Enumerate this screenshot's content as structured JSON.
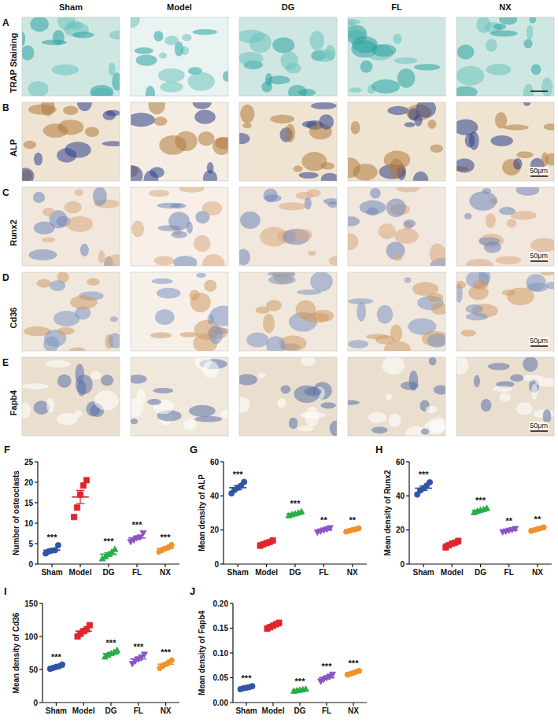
{
  "image_grid": {
    "columns": [
      "Sham",
      "Model",
      "DG",
      "FL",
      "NX"
    ],
    "rows": [
      {
        "panel": "A",
        "label": "TRAP Staining"
      },
      {
        "panel": "B",
        "label": "ALP",
        "scale_bar": "50μm"
      },
      {
        "panel": "C",
        "label": "Runx2",
        "scale_bar": "50μm"
      },
      {
        "panel": "D",
        "label": "Cd36",
        "scale_bar": "50μm"
      },
      {
        "panel": "E",
        "label": "Fapb4",
        "scale_bar": "50μm"
      }
    ]
  },
  "chart_data": [
    {
      "type": "scatter",
      "panel": "F",
      "y_label": "Number of osteoclasts",
      "categories": [
        "Sham",
        "Model",
        "DG",
        "FL",
        "NX"
      ],
      "colors": [
        "#2f55a4",
        "#e0262b",
        "#27ad47",
        "#8a54c6",
        "#f0922b"
      ],
      "values": [
        3.4,
        16.4,
        2.4,
        6.4,
        3.8
      ],
      "errors": [
        0.35,
        1.6,
        0.4,
        0.35,
        0.3
      ],
      "points": [
        [
          2.6,
          3.1,
          3.3,
          3.4,
          4.6
        ],
        [
          11.5,
          13.8,
          17,
          19.2,
          20.5
        ],
        [
          1.3,
          1.8,
          2.4,
          2.9,
          3.6
        ],
        [
          5.5,
          5.9,
          6.4,
          6.6,
          7.6
        ],
        [
          3,
          3.4,
          3.8,
          4.1,
          4.7
        ]
      ],
      "annotations": [
        "***",
        null,
        "***",
        "***",
        "***"
      ],
      "ylim": [
        0,
        25
      ],
      "yticks": [
        0,
        5,
        10,
        15,
        20,
        25
      ]
    },
    {
      "type": "scatter",
      "panel": "G",
      "y_label": "Mean density of ALP",
      "categories": [
        "Sham",
        "Model",
        "DG",
        "FL",
        "NX"
      ],
      "colors": [
        "#2f55a4",
        "#e0262b",
        "#27ad47",
        "#8a54c6",
        "#f0922b"
      ],
      "values": [
        44.8,
        12.3,
        29.5,
        20,
        20
      ],
      "errors": [
        1.2,
        0.5,
        0.4,
        0.5,
        0.4
      ],
      "points": [
        [
          41.5,
          43.5,
          44.8,
          46,
          48.2
        ],
        [
          10.8,
          11.6,
          12.3,
          12.9,
          13.9
        ],
        [
          28.3,
          29,
          29.5,
          30,
          30.7
        ],
        [
          18.7,
          19.4,
          20,
          20.6,
          21.3
        ],
        [
          19,
          19.5,
          20,
          20.4,
          21.1
        ]
      ],
      "annotations": [
        "***",
        null,
        "***",
        "**",
        "**"
      ],
      "ylim": [
        0,
        60
      ],
      "yticks": [
        0,
        20,
        40,
        60
      ]
    },
    {
      "type": "scatter",
      "panel": "H",
      "y_label": "Mean density of Runx2",
      "categories": [
        "Sham",
        "Model",
        "DG",
        "FL",
        "NX"
      ],
      "colors": [
        "#2f55a4",
        "#e0262b",
        "#27ad47",
        "#8a54c6",
        "#f0922b"
      ],
      "values": [
        44.5,
        11.8,
        31.5,
        19.8,
        20.5
      ],
      "errors": [
        1.3,
        0.7,
        0.4,
        0.35,
        0.4
      ],
      "points": [
        [
          40.8,
          43.2,
          44.5,
          46,
          48
        ],
        [
          9.8,
          11,
          12,
          12.6,
          13.6
        ],
        [
          30.2,
          31,
          31.6,
          32,
          32.7
        ],
        [
          18.9,
          19.3,
          19.8,
          20.2,
          20.8
        ],
        [
          19.4,
          20,
          20.5,
          21,
          21.6
        ]
      ],
      "annotations": [
        "***",
        null,
        "***",
        "**",
        "**"
      ],
      "ylim": [
        0,
        60
      ],
      "yticks": [
        0,
        20,
        40,
        60
      ]
    },
    {
      "type": "scatter",
      "panel": "I",
      "y_label": "Mean density of Cd36",
      "categories": [
        "Sham",
        "Model",
        "DG",
        "FL",
        "NX"
      ],
      "colors": [
        "#2f55a4",
        "#e0262b",
        "#27ad47",
        "#8a54c6",
        "#f0922b"
      ],
      "values": [
        54,
        108,
        74,
        66,
        58
      ],
      "errors": [
        1.1,
        3,
        1.7,
        2.4,
        2.1
      ],
      "points": [
        [
          51,
          52.5,
          54,
          55,
          57.5
        ],
        [
          100,
          104,
          108,
          111,
          117
        ],
        [
          69,
          72,
          74,
          76,
          79
        ],
        [
          59,
          63,
          66,
          69,
          73
        ],
        [
          52,
          55,
          58,
          61,
          64
        ]
      ],
      "annotations": [
        "***",
        null,
        "***",
        "***",
        "***"
      ],
      "ylim": [
        0,
        150
      ],
      "yticks": [
        0,
        50,
        100,
        150
      ]
    },
    {
      "type": "scatter",
      "panel": "J",
      "y_label": "Mean density of Fapb4",
      "categories": [
        "Sham",
        "Model",
        "DG",
        "FL",
        "NX"
      ],
      "colors": [
        "#2f55a4",
        "#e0262b",
        "#27ad47",
        "#8a54c6",
        "#f0922b"
      ],
      "values": [
        0.03,
        0.155,
        0.025,
        0.05,
        0.06
      ],
      "errors": [
        0.001,
        0.002,
        0.0007,
        0.0025,
        0.0014
      ],
      "points": [
        [
          0.027,
          0.029,
          0.03,
          0.031,
          0.033
        ],
        [
          0.149,
          0.152,
          0.155,
          0.158,
          0.161
        ],
        [
          0.023,
          0.024,
          0.025,
          0.026,
          0.027
        ],
        [
          0.043,
          0.047,
          0.05,
          0.053,
          0.057
        ],
        [
          0.056,
          0.058,
          0.06,
          0.062,
          0.064
        ]
      ],
      "annotations": [
        "***",
        null,
        "***",
        "***",
        "***"
      ],
      "ylim": [
        0,
        0.2
      ],
      "yticks": [
        {
          "value": 0,
          "label": "0.00"
        },
        {
          "value": 0.05,
          "label": "0.05"
        },
        {
          "value": 0.1,
          "label": "0.10"
        },
        {
          "value": 0.15,
          "label": "0.15"
        },
        {
          "value": 0.2,
          "label": "0.20"
        }
      ]
    }
  ]
}
